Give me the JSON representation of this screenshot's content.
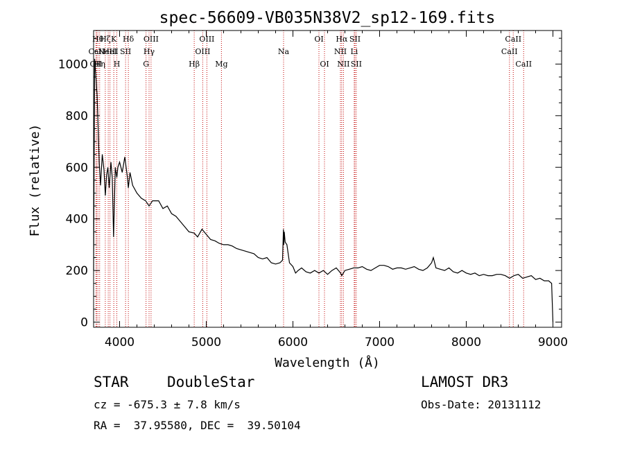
{
  "chart_data": {
    "type": "line",
    "title": "spec-56609-VB035N38V2_sp12-169.fits",
    "xlabel": "Wavelength (Å)",
    "ylabel": "Flux (relative)",
    "xlim": [
      3700,
      9100
    ],
    "ylim": [
      -20,
      1130
    ],
    "x_ticks": [
      4000,
      5000,
      6000,
      7000,
      8000,
      9000
    ],
    "y_ticks": [
      0,
      200,
      400,
      600,
      800,
      1000
    ],
    "grid": false,
    "series": [
      {
        "name": "flux",
        "color": "#000000",
        "x": [
          3700,
          3712,
          3725,
          3740,
          3752,
          3765,
          3780,
          3800,
          3820,
          3835,
          3850,
          3865,
          3880,
          3900,
          3915,
          3930,
          3950,
          3968,
          3980,
          4000,
          4030,
          4060,
          4090,
          4101,
          4120,
          4150,
          4200,
          4250,
          4300,
          4340,
          4380,
          4450,
          4500,
          4550,
          4600,
          4650,
          4700,
          4750,
          4800,
          4861,
          4900,
          4950,
          5000,
          5050,
          5100,
          5150,
          5200,
          5250,
          5300,
          5350,
          5400,
          5450,
          5500,
          5550,
          5600,
          5650,
          5700,
          5750,
          5800,
          5850,
          5880,
          5890,
          5895,
          5900,
          5910,
          5930,
          5960,
          6000,
          6030,
          6060,
          6100,
          6150,
          6200,
          6250,
          6300,
          6350,
          6400,
          6450,
          6500,
          6550,
          6563,
          6600,
          6650,
          6700,
          6750,
          6800,
          6850,
          6900,
          6950,
          7000,
          7050,
          7100,
          7150,
          7200,
          7250,
          7300,
          7350,
          7400,
          7450,
          7500,
          7550,
          7600,
          7620,
          7650,
          7700,
          7750,
          7800,
          7850,
          7900,
          7950,
          8000,
          8050,
          8100,
          8150,
          8200,
          8250,
          8300,
          8350,
          8400,
          8450,
          8500,
          8550,
          8600,
          8650,
          8700,
          8750,
          8800,
          8850,
          8900,
          8950,
          8985,
          9000
        ],
        "y": [
          200,
          1020,
          960,
          880,
          760,
          620,
          530,
          650,
          590,
          490,
          570,
          600,
          520,
          620,
          560,
          330,
          600,
          560,
          600,
          620,
          580,
          640,
          560,
          520,
          580,
          530,
          500,
          480,
          470,
          450,
          470,
          470,
          440,
          450,
          420,
          410,
          390,
          370,
          350,
          345,
          330,
          360,
          340,
          320,
          315,
          305,
          300,
          300,
          295,
          285,
          280,
          275,
          270,
          265,
          250,
          245,
          250,
          230,
          225,
          230,
          240,
          360,
          300,
          350,
          310,
          300,
          230,
          215,
          190,
          200,
          210,
          195,
          190,
          200,
          190,
          200,
          185,
          200,
          210,
          190,
          180,
          200,
          205,
          210,
          210,
          215,
          205,
          200,
          210,
          220,
          220,
          215,
          205,
          210,
          210,
          205,
          210,
          215,
          205,
          200,
          210,
          230,
          250,
          210,
          205,
          200,
          210,
          195,
          190,
          200,
          190,
          185,
          190,
          180,
          185,
          180,
          180,
          185,
          185,
          180,
          170,
          180,
          185,
          170,
          175,
          180,
          165,
          170,
          160,
          160,
          150,
          0
        ]
      }
    ],
    "lines": [
      {
        "x": 3727,
        "label": "OII",
        "row": 2
      },
      {
        "x": 3735,
        "label": "CaII",
        "row": 1
      },
      {
        "x": 3750,
        "label": "Hθ",
        "row": 0
      },
      {
        "x": 3770,
        "label": "Hη",
        "row": 2
      },
      {
        "x": 3835,
        "label": "Hζ",
        "row": 0
      },
      {
        "x": 3869,
        "label": "NeIII",
        "row": 1
      },
      {
        "x": 3889,
        "label": "HeI",
        "row": 1
      },
      {
        "x": 3933,
        "label": "K",
        "row": 0
      },
      {
        "x": 3968,
        "label": "H",
        "row": 2
      },
      {
        "x": 4069,
        "label": "SII",
        "row": 1
      },
      {
        "x": 4101,
        "label": "Hδ",
        "row": 0
      },
      {
        "x": 4305,
        "label": "G",
        "row": 2
      },
      {
        "x": 4340,
        "label": "Hγ",
        "row": 1
      },
      {
        "x": 4363,
        "label": "OIII",
        "row": 0
      },
      {
        "x": 4861,
        "label": "Hβ",
        "row": 2
      },
      {
        "x": 4959,
        "label": "OIII",
        "row": 1
      },
      {
        "x": 5007,
        "label": "OIII",
        "row": 0
      },
      {
        "x": 5175,
        "label": "Mg",
        "row": 2
      },
      {
        "x": 5892,
        "label": "Na",
        "row": 1
      },
      {
        "x": 6300,
        "label": "OI",
        "row": 0
      },
      {
        "x": 6364,
        "label": "OI",
        "row": 2
      },
      {
        "x": 6548,
        "label": "NII",
        "row": 1
      },
      {
        "x": 6563,
        "label": "Hα",
        "row": 0
      },
      {
        "x": 6583,
        "label": "NII",
        "row": 2
      },
      {
        "x": 6707,
        "label": "Li",
        "row": 1
      },
      {
        "x": 6716,
        "label": "SII",
        "row": 0
      },
      {
        "x": 6731,
        "label": "SII",
        "row": 2
      },
      {
        "x": 8498,
        "label": "CaII",
        "row": 1
      },
      {
        "x": 8542,
        "label": "CaII",
        "row": 0
      },
      {
        "x": 8662,
        "label": "CaII",
        "row": 2
      }
    ]
  },
  "footer": {
    "object_class": "STAR",
    "subclass": "DoubleStar",
    "survey": "LAMOST DR3",
    "cz": "cz = -675.3 ± 7.8 km/s",
    "obs_date": "Obs-Date: 20131112",
    "coords": "RA =  37.95580, DEC =  39.50104"
  }
}
